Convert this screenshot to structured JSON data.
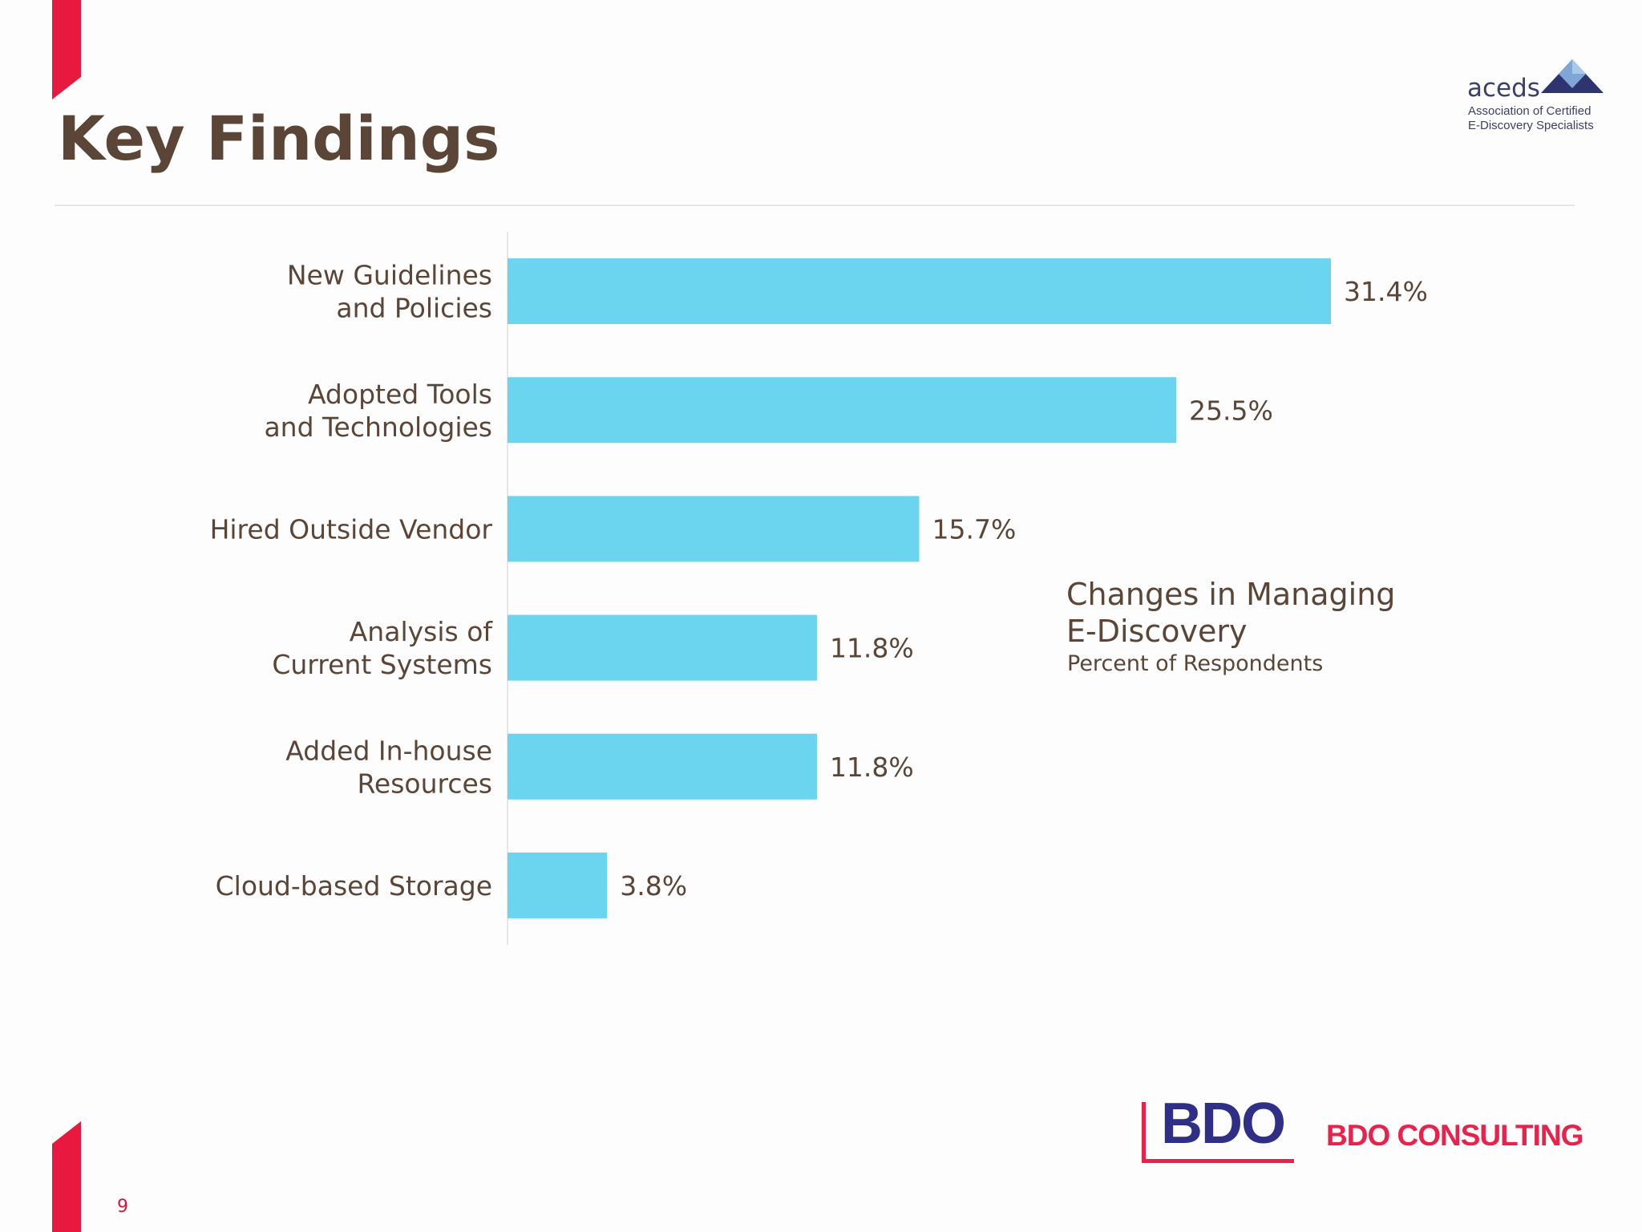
{
  "slide": {
    "title": "Key Findings",
    "page_number": "9"
  },
  "aceds_logo": {
    "name": "aceds",
    "subtitle_line1": "Association of Certified",
    "subtitle_line2": "E-Discovery Specialists"
  },
  "footer": {
    "bdo_logo": "BDO",
    "bdo_consulting": "BDO CONSULTING"
  },
  "colors": {
    "bar": "#6bd4ee",
    "text": "#5a4536",
    "accent_red": "#e8193f",
    "bdo_blue": "#2f2f86",
    "bdo_red": "#e8224a"
  },
  "chart_data": {
    "type": "bar",
    "orientation": "horizontal",
    "title": "Changes in Managing E-Discovery",
    "title_lines": [
      "Changes in Managing",
      "E-Discovery"
    ],
    "subtitle": "Percent of Respondents",
    "categories": [
      [
        "New Guidelines",
        "and Policies"
      ],
      [
        "Adopted Tools",
        "and Technologies"
      ],
      [
        "Hired Outside Vendor"
      ],
      [
        "Analysis of",
        "Current Systems"
      ],
      [
        "Added In-house",
        "Resources"
      ],
      [
        "Cloud-based Storage"
      ]
    ],
    "values": [
      31.4,
      25.5,
      15.7,
      11.8,
      11.8,
      3.8
    ],
    "value_labels": [
      "31.4%",
      "25.5%",
      "15.7%",
      "11.8%",
      "11.8%",
      "3.8%"
    ],
    "xlim": [
      0,
      31.4
    ],
    "grid": false,
    "legend": "none"
  }
}
